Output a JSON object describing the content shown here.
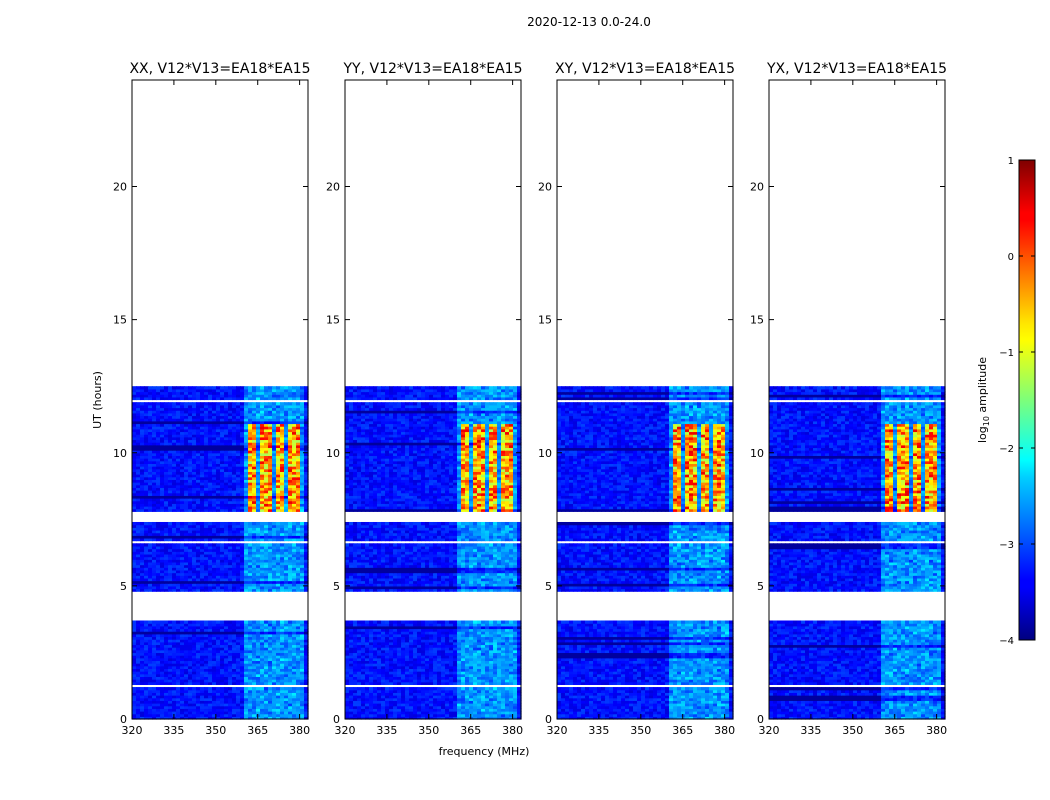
{
  "figure_title": "2020-12-13 0.0-24.0",
  "xlabel": "frequency (MHz)",
  "ylabel": "UT (hours)",
  "colorbar": {
    "label_prefix": "log",
    "label_sub": "10",
    "label_suffix": " amplitude",
    "min": -4,
    "max": 1,
    "ticks": [
      1,
      0,
      -1,
      -2,
      -3,
      -4
    ],
    "tick_labels": [
      "1",
      "0",
      "−1",
      "−2",
      "−3",
      "−4"
    ],
    "colormap": "jet"
  },
  "chart_data": [
    {
      "type": "heatmap",
      "title": "XX, V12*V13=EA18*EA15",
      "pol": "XX",
      "xlim": [
        320,
        383
      ],
      "ylim": [
        0,
        24
      ],
      "xticks": [
        320,
        335,
        350,
        365,
        380
      ],
      "xtick_labels": [
        "320",
        "335",
        "350",
        "365",
        "380"
      ],
      "yticks": [
        0,
        5,
        10,
        15,
        20
      ],
      "ytick_labels": [
        "0",
        "5",
        "10",
        "15",
        "20"
      ],
      "data_time_range": [
        0,
        12.5
      ],
      "rfi_band_mhz": [
        360,
        382
      ],
      "strong_rfi_time_range": [
        7.7,
        11.0
      ],
      "strong_rfi_channels_mhz": [
        [
          361,
          365
        ],
        [
          366,
          370
        ],
        [
          371,
          375
        ],
        [
          376,
          380
        ]
      ],
      "strong_peak_log_amp": 0.5,
      "background_log_amp": -3.3,
      "flagged_gaps_ut": [
        [
          3.7,
          4.7
        ],
        [
          7.3,
          7.6
        ],
        [
          7.6,
          7.7
        ],
        [
          6.5,
          6.6
        ],
        [
          1.2,
          1.3
        ],
        [
          11.8,
          11.9
        ]
      ]
    },
    {
      "type": "heatmap",
      "title": "YY, V12*V13=EA18*EA15",
      "pol": "YY",
      "xlim": [
        320,
        383
      ],
      "ylim": [
        0,
        24
      ],
      "xticks": [
        320,
        335,
        350,
        365,
        380
      ],
      "xtick_labels": [
        "320",
        "335",
        "350",
        "365",
        "380"
      ],
      "yticks": [
        0,
        5,
        10,
        15,
        20
      ],
      "ytick_labels": [
        "0",
        "5",
        "10",
        "15",
        "20"
      ],
      "data_time_range": [
        0,
        12.5
      ],
      "rfi_band_mhz": [
        360,
        382
      ],
      "strong_rfi_time_range": [
        7.7,
        11.0
      ],
      "strong_rfi_channels_mhz": [
        [
          361,
          365
        ],
        [
          366,
          370
        ],
        [
          371,
          375
        ],
        [
          376,
          380
        ]
      ],
      "strong_peak_log_amp": 0.5,
      "background_log_amp": -3.3,
      "flagged_gaps_ut": [
        [
          3.7,
          4.7
        ],
        [
          7.3,
          7.6
        ],
        [
          7.6,
          7.7
        ],
        [
          6.5,
          6.6
        ],
        [
          1.2,
          1.3
        ],
        [
          11.8,
          11.9
        ]
      ]
    },
    {
      "type": "heatmap",
      "title": "XY, V12*V13=EA18*EA15",
      "pol": "XY",
      "xlim": [
        320,
        383
      ],
      "ylim": [
        0,
        24
      ],
      "xticks": [
        320,
        335,
        350,
        365,
        380
      ],
      "xtick_labels": [
        "320",
        "335",
        "350",
        "365",
        "380"
      ],
      "yticks": [
        0,
        5,
        10,
        15,
        20
      ],
      "ytick_labels": [
        "0",
        "5",
        "10",
        "15",
        "20"
      ],
      "data_time_range": [
        0,
        12.5
      ],
      "rfi_band_mhz": [
        360,
        382
      ],
      "strong_rfi_time_range": [
        7.7,
        11.0
      ],
      "strong_rfi_channels_mhz": [
        [
          361,
          365
        ],
        [
          366,
          370
        ],
        [
          371,
          375
        ],
        [
          376,
          380
        ]
      ],
      "strong_peak_log_amp": 0.5,
      "background_log_amp": -3.3,
      "flagged_gaps_ut": [
        [
          3.7,
          4.7
        ],
        [
          7.3,
          7.6
        ],
        [
          7.6,
          7.7
        ],
        [
          6.5,
          6.6
        ],
        [
          1.2,
          1.3
        ],
        [
          11.8,
          11.9
        ]
      ]
    },
    {
      "type": "heatmap",
      "title": "YX, V12*V13=EA18*EA15",
      "pol": "YX",
      "xlim": [
        320,
        383
      ],
      "ylim": [
        0,
        24
      ],
      "xticks": [
        320,
        335,
        350,
        365,
        380
      ],
      "xtick_labels": [
        "320",
        "335",
        "350",
        "365",
        "380"
      ],
      "yticks": [
        0,
        5,
        10,
        15,
        20
      ],
      "ytick_labels": [
        "0",
        "5",
        "10",
        "15",
        "20"
      ],
      "data_time_range": [
        0,
        12.5
      ],
      "rfi_band_mhz": [
        360,
        382
      ],
      "strong_rfi_time_range": [
        7.7,
        11.0
      ],
      "strong_rfi_channels_mhz": [
        [
          361,
          365
        ],
        [
          366,
          370
        ],
        [
          371,
          375
        ],
        [
          376,
          380
        ]
      ],
      "strong_peak_log_amp": 0.5,
      "background_log_amp": -3.3,
      "flagged_gaps_ut": [
        [
          3.7,
          4.7
        ],
        [
          7.3,
          7.6
        ],
        [
          7.6,
          7.7
        ],
        [
          6.5,
          6.6
        ],
        [
          1.2,
          1.3
        ],
        [
          11.8,
          11.9
        ]
      ]
    }
  ]
}
